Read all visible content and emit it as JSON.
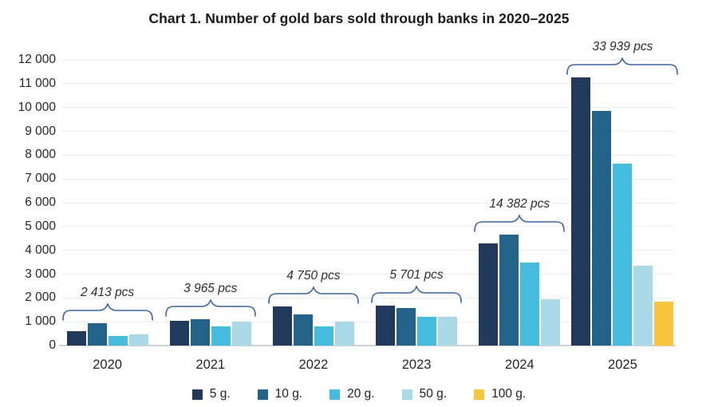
{
  "title": "Chart 1. Number of gold bars sold through banks in 2020–2025",
  "chart_data": {
    "type": "bar",
    "title": "Chart 1. Number of gold bars sold through banks in 2020–2025",
    "categories": [
      "2020",
      "2021",
      "2022",
      "2023",
      "2024",
      "2025"
    ],
    "series": [
      {
        "name": "5 g.",
        "color": "#21395a",
        "values": [
          600,
          1040,
          1650,
          1690,
          4290,
          11250
        ]
      },
      {
        "name": "10 g.",
        "color": "#236289",
        "values": [
          950,
          1105,
          1300,
          1566,
          4660,
          9850
        ]
      },
      {
        "name": "20 g.",
        "color": "#45bcde",
        "values": [
          395,
          810,
          800,
          1222,
          3490,
          7630
        ]
      },
      {
        "name": "50 g.",
        "color": "#a9d8e6",
        "values": [
          468,
          1010,
          1000,
          1223,
          1942,
          3350
        ]
      },
      {
        "name": "100 g.",
        "color": "#f7c63d",
        "values": [
          null,
          null,
          null,
          null,
          null,
          1859
        ]
      }
    ],
    "group_totals": [
      "2 413 pcs",
      "3 965 pcs",
      "4 750 pcs",
      "5 701 pcs",
      "14 382 pcs",
      "33 939 pcs"
    ],
    "xlabel": "",
    "ylabel": "",
    "ylim": [
      0,
      12000
    ],
    "ytick_step": 1000,
    "ytick_labels": [
      "0",
      "1 000",
      "2 000",
      "3 000",
      "4 000",
      "5 000",
      "6 000",
      "7 000",
      "8 000",
      "9 000",
      "10 000",
      "11 000",
      "12 000"
    ],
    "grid": true,
    "legend_position": "bottom",
    "legend_labels": [
      "5 g.",
      "10 g.",
      "20 g.",
      "50 g.",
      "100 g."
    ],
    "annotation_brace_color": "#3d649e",
    "gridline_color": "#ececec",
    "axis_line_color": "#d2d2d2"
  }
}
